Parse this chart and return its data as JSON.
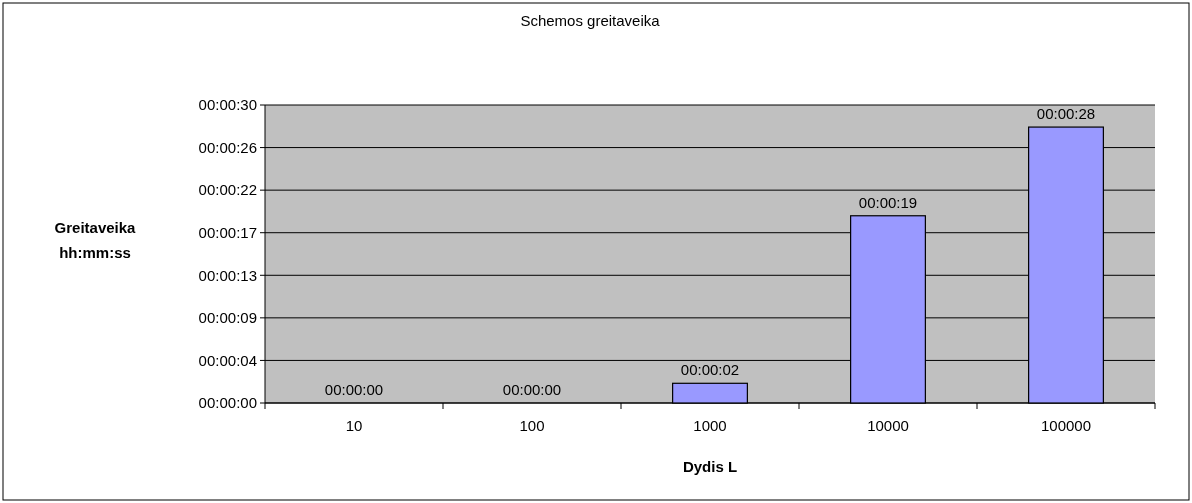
{
  "chart_data": {
    "type": "bar",
    "title": "Schemos greitaveika",
    "xlabel": "Dydis L",
    "ylabel": "Greitaveika\nhh:mm:ss",
    "categories": [
      "10",
      "100",
      "1000",
      "10000",
      "100000"
    ],
    "values": [
      0,
      0,
      2,
      19,
      28
    ],
    "value_labels": [
      "00:00:00",
      "00:00:00",
      "00:00:02",
      "00:00:19",
      "00:00:28"
    ],
    "color": "#9999ff",
    "ylim": [
      0,
      30.24
    ],
    "yticks": [
      {
        "value": 0,
        "label": "00:00:00"
      },
      {
        "value": 4.32,
        "label": "00:00:04"
      },
      {
        "value": 8.64,
        "label": "00:00:09"
      },
      {
        "value": 12.96,
        "label": "00:00:13"
      },
      {
        "value": 17.28,
        "label": "00:00:17"
      },
      {
        "value": 21.6,
        "label": "00:00:22"
      },
      {
        "value": 25.92,
        "label": "00:00:26"
      },
      {
        "value": 30.24,
        "label": "00:00:30"
      }
    ],
    "grid": "y"
  }
}
